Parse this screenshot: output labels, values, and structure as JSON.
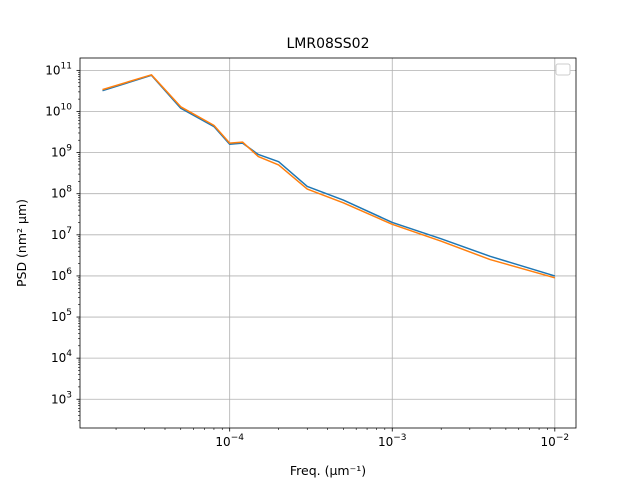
{
  "chart_data": {
    "type": "line",
    "title": "LMR08SS02",
    "xlabel": "Freq. (μm⁻¹)",
    "ylabel": "PSD (nm² μm)",
    "x_scale": "log",
    "y_scale": "log",
    "xlim": [
      1.2e-05,
      0.0135
    ],
    "ylim": [
      200,
      200000000000.0
    ],
    "x_ticks": [
      {
        "value": 0.0001,
        "base": "10",
        "exp": "−4"
      },
      {
        "value": 0.001,
        "base": "10",
        "exp": "−3"
      },
      {
        "value": 0.01,
        "base": "10",
        "exp": "−2"
      }
    ],
    "y_ticks": [
      {
        "value": 1000.0,
        "base": "10",
        "exp": "3"
      },
      {
        "value": 10000.0,
        "base": "10",
        "exp": "4"
      },
      {
        "value": 100000.0,
        "base": "10",
        "exp": "5"
      },
      {
        "value": 1000000.0,
        "base": "10",
        "exp": "6"
      },
      {
        "value": 10000000.0,
        "base": "10",
        "exp": "7"
      },
      {
        "value": 100000000.0,
        "base": "10",
        "exp": "8"
      },
      {
        "value": 1000000000.0,
        "base": "10",
        "exp": "9"
      },
      {
        "value": 10000000000.0,
        "base": "10",
        "exp": "10"
      },
      {
        "value": 100000000000.0,
        "base": "10",
        "exp": "11"
      }
    ],
    "grid": true,
    "legend": {
      "placement": "top-right",
      "entries": []
    },
    "series_colors": [
      "#1f77b4",
      "#ff7f0e",
      "#2ca02c",
      "#d62728",
      "#9467bd",
      "#8c564b",
      "#e377c2",
      "#7f7f7f",
      "#bcbd22",
      "#17becf"
    ],
    "series": [
      {
        "values": [
          [
            1.65e-05,
            32000000000.0
          ],
          [
            3.3e-05,
            76000000000.0
          ],
          [
            5e-05,
            12000000000.0
          ],
          [
            8e-05,
            4300000000.0
          ],
          [
            0.0001,
            1600000000.0
          ],
          [
            0.00012,
            1700000000.0
          ],
          [
            0.00015,
            900000000.0
          ],
          [
            0.0002,
            600000000.0
          ],
          [
            0.0003,
            150000000.0
          ],
          [
            0.0005,
            70000000.0
          ],
          [
            0.001,
            20000000.0
          ],
          [
            0.002,
            8000000.0
          ],
          [
            0.004,
            3000000.0
          ],
          [
            0.01,
            1000000.0
          ]
        ]
      },
      {
        "values": [
          [
            1.65e-05,
            34000000000.0
          ],
          [
            3.3e-05,
            78000000000.0
          ],
          [
            5e-05,
            13000000000.0
          ],
          [
            8e-05,
            4600000000.0
          ],
          [
            0.0001,
            1700000000.0
          ],
          [
            0.00012,
            1800000000.0
          ],
          [
            0.00015,
            800000000.0
          ],
          [
            0.0002,
            500000000.0
          ],
          [
            0.0003,
            130000000.0
          ],
          [
            0.0005,
            60000000.0
          ],
          [
            0.001,
            18000000.0
          ],
          [
            0.002,
            7000000.0
          ],
          [
            0.004,
            2500000.0
          ],
          [
            0.01,
            900000.0
          ]
        ]
      }
    ]
  }
}
